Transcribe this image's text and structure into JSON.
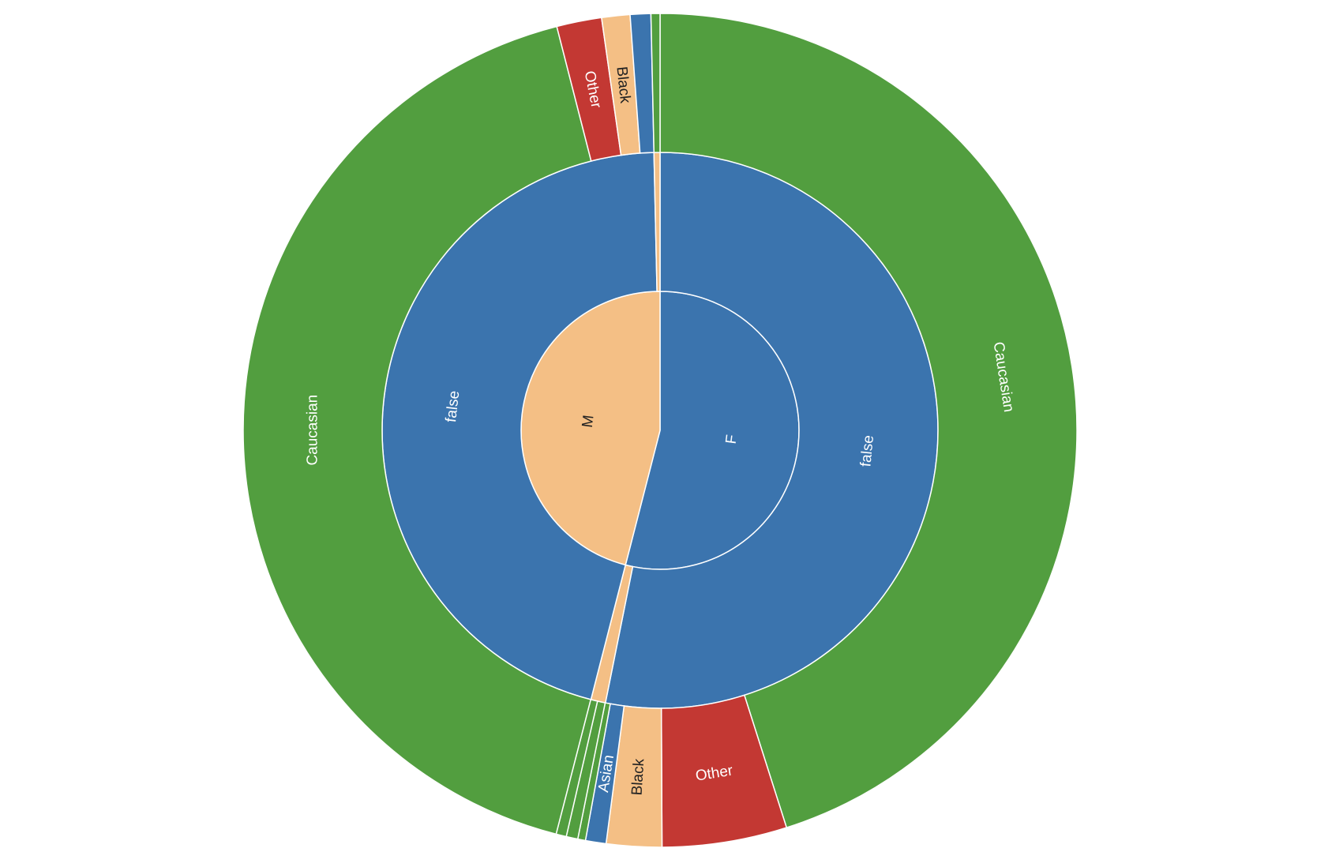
{
  "chart_data": {
    "type": "sunburst",
    "start_angle_deg": 0,
    "direction": "clockwise",
    "rings": [
      {
        "level": 1,
        "segments": [
          {
            "label": "F",
            "value": 54.0,
            "color": "#3b74ae",
            "text_color": "#ffffff"
          },
          {
            "label": "M",
            "value": 46.0,
            "color": "#f4bf85",
            "text_color": "#222222"
          }
        ]
      },
      {
        "level": 2,
        "segments": [
          {
            "label": "false",
            "value": 53.15,
            "color": "#3b74ae",
            "text_color": "#ffffff",
            "parent": "F"
          },
          {
            "label": "",
            "value": 0.85,
            "color": "#f4bf85",
            "parent": "F"
          },
          {
            "label": "false",
            "value": 45.65,
            "color": "#3b74ae",
            "text_color": "#ffffff",
            "parent": "M"
          },
          {
            "label": "",
            "value": 0.35,
            "color": "#f4bf85",
            "parent": "M"
          }
        ]
      },
      {
        "level": 3,
        "segments": [
          {
            "label": "Caucasian",
            "value": 45.25,
            "color": "#529e3f",
            "text_color": "#ffffff",
            "parent": "F / false"
          },
          {
            "label": "Other",
            "value": 4.85,
            "color": "#c33833",
            "text_color": "#ffffff",
            "parent": "F / false"
          },
          {
            "label": "Black",
            "value": 2.15,
            "color": "#f4bf85",
            "text_color": "#222222",
            "parent": "F / false"
          },
          {
            "label": "Asian",
            "value": 0.8,
            "color": "#3b74ae",
            "text_color": "#ffffff",
            "parent": "F / false"
          },
          {
            "label": "",
            "value": 0.3,
            "color": "#529e3f",
            "parent": "F / false"
          },
          {
            "label": "",
            "value": 0.45,
            "color": "#529e3f",
            "parent": "F"
          },
          {
            "label": "",
            "value": 0.4,
            "color": "#529e3f",
            "parent": "F"
          },
          {
            "label": "Caucasian",
            "value": 42.15,
            "color": "#529e3f",
            "text_color": "#ffffff",
            "parent": "M / false"
          },
          {
            "label": "Other",
            "value": 1.75,
            "color": "#c33833",
            "text_color": "#ffffff",
            "parent": "M / false"
          },
          {
            "label": "Black",
            "value": 1.1,
            "color": "#f4bf85",
            "text_color": "#222222",
            "parent": "M / false"
          },
          {
            "label": "",
            "value": 0.8,
            "color": "#3b74ae",
            "parent": "M / false"
          },
          {
            "label": "",
            "value": 0.35,
            "color": "#529e3f",
            "parent": "M"
          }
        ]
      }
    ]
  }
}
